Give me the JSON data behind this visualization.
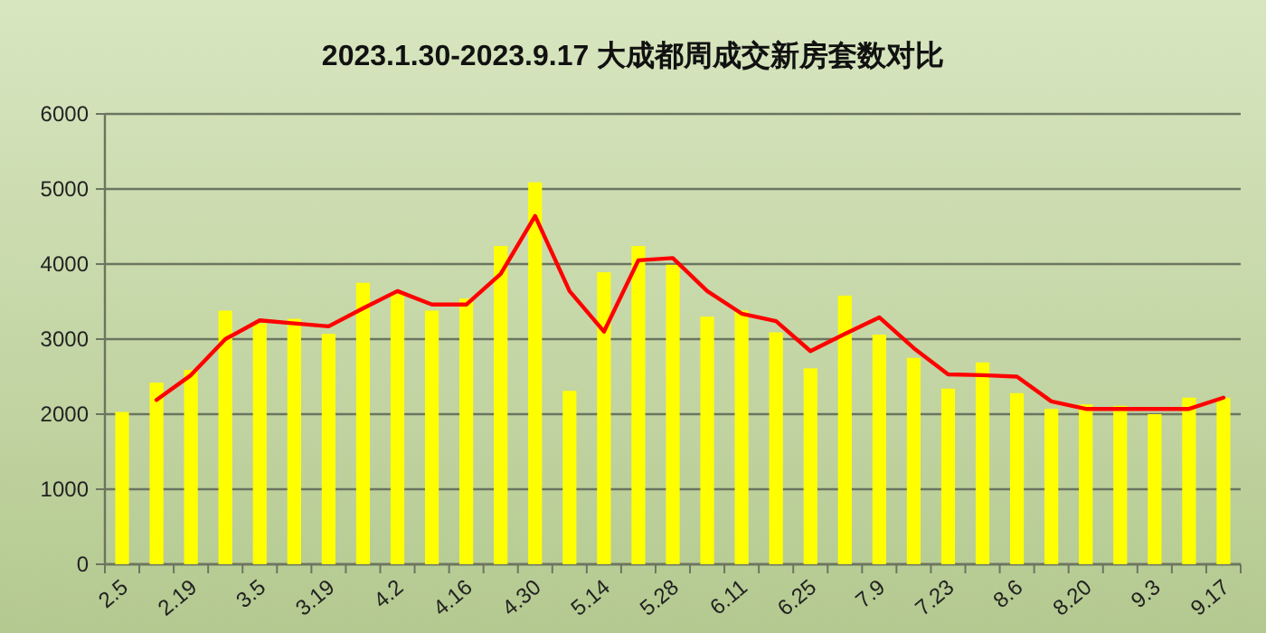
{
  "chart_data": {
    "type": "bar",
    "title": "2023.1.30-2023.9.17 大成都周成交新房套数对比",
    "categories": [
      "2.5",
      null,
      "2.19",
      null,
      "3.5",
      null,
      "3.19",
      null,
      "4.2",
      null,
      "4.16",
      null,
      "4.30",
      null,
      "5.14",
      null,
      "5.28",
      null,
      "6.11",
      null,
      "6.25",
      null,
      "7.9",
      null,
      "7.23",
      null,
      "8.6",
      null,
      "8.20",
      null,
      "9.3",
      null,
      "9.17"
    ],
    "series": [
      {
        "color": "#ffff00",
        "values": [
          2030,
          2420,
          2590,
          3380,
          3210,
          3270,
          3070,
          3750,
          3600,
          3380,
          3540,
          4240,
          5090,
          2310,
          3890,
          4240,
          3990,
          3300,
          3380,
          3090,
          2610,
          3580,
          3060,
          2750,
          2340,
          2690,
          2280,
          2070,
          2130,
          2110,
          2000,
          2220,
          2220
        ]
      },
      {
        "type": "line",
        "color": "#ff0000",
        "values": [
          null,
          2190,
          2520,
          3000,
          3250,
          3210,
          3170,
          3410,
          3640,
          3460,
          3460,
          3870,
          4640,
          3640,
          3100,
          4050,
          4080,
          3640,
          3340,
          3240,
          2840,
          3070,
          3290,
          2880,
          2530,
          2520,
          2500,
          2170,
          2070,
          2070,
          2070,
          2070,
          2220
        ]
      }
    ],
    "ylim": [
      0,
      6000
    ],
    "yticks": [
      0,
      1000,
      2000,
      3000,
      4000,
      5000,
      6000
    ],
    "grid": "y",
    "marker": "none",
    "line_style": "solid"
  }
}
